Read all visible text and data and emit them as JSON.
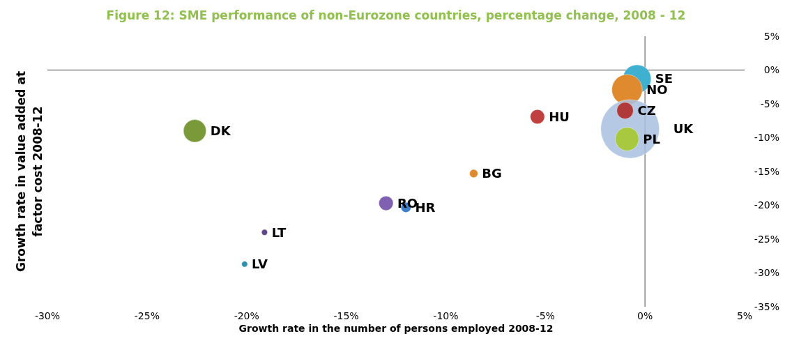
{
  "chart_data": {
    "type": "bubble",
    "title": "Figure 12: SME performance of non-Eurozone countries, percentage change, 2008 - 12",
    "xlabel": "Growth rate in the number of persons employed 2008-12",
    "ylabel": "Growth rate in value added at factor cost 2008-12",
    "xlim": [
      -30,
      5
    ],
    "xticks": [
      {
        "value": -30,
        "label": "-30%"
      },
      {
        "value": -25,
        "label": "-25%"
      },
      {
        "value": -20,
        "label": "-20%"
      },
      {
        "value": -15,
        "label": "-15%"
      },
      {
        "value": -10,
        "label": "-10%"
      },
      {
        "value": -5,
        "label": "-5%"
      },
      {
        "value": 0,
        "label": "0%"
      },
      {
        "value": 5,
        "label": "5%"
      }
    ],
    "ylim": [
      -35,
      5
    ],
    "yticks": [
      {
        "value": -35,
        "label": "-35%"
      },
      {
        "value": -30,
        "label": "-30%"
      },
      {
        "value": -25,
        "label": "-25%"
      },
      {
        "value": -20,
        "label": "-20%"
      },
      {
        "value": -15,
        "label": "-15%"
      },
      {
        "value": -10,
        "label": "-10%"
      },
      {
        "value": -5,
        "label": "-5%"
      },
      {
        "value": 0,
        "label": "0%"
      },
      {
        "value": 5,
        "label": "5%"
      }
    ],
    "series": [
      {
        "name": "SE",
        "color": "#3fb0d0",
        "x": [
          -0.4
        ],
        "values": [
          -1.3
        ],
        "sizes": [
          0.23
        ]
      },
      {
        "name": "NO",
        "color": "#e08a30",
        "x": [
          -0.9
        ],
        "values": [
          -2.9
        ],
        "sizes": [
          0.27
        ]
      },
      {
        "name": "UK",
        "color": "#a8c0e0",
        "x": [
          -0.75
        ],
        "values": [
          -8.7
        ],
        "sizes": [
          1
        ]
      },
      {
        "name": "CZ",
        "color": "#b03a3a",
        "x": [
          -1.0
        ],
        "values": [
          -6.0
        ],
        "sizes": [
          0.08
        ]
      },
      {
        "name": "PL",
        "color": "#a8c840",
        "x": [
          -0.9
        ],
        "values": [
          -10.2
        ],
        "sizes": [
          0.16
        ]
      },
      {
        "name": "HU",
        "color": "#c04040",
        "x": [
          -5.4
        ],
        "values": [
          -6.9
        ],
        "sizes": [
          0.06
        ]
      },
      {
        "name": "DK",
        "color": "#7a9a3a",
        "x": [
          -22.6
        ],
        "values": [
          -9.0
        ],
        "sizes": [
          0.15
        ]
      },
      {
        "name": "BG",
        "color": "#e08a30",
        "x": [
          -8.6
        ],
        "values": [
          -15.3
        ],
        "sizes": [
          0.02
        ]
      },
      {
        "name": "RO",
        "color": "#8060b0",
        "x": [
          -13.0
        ],
        "values": [
          -19.7
        ],
        "sizes": [
          0.06
        ]
      },
      {
        "name": "HR",
        "color": "#4080c8",
        "x": [
          -12.0
        ],
        "values": [
          -20.3
        ],
        "sizes": [
          0.03
        ]
      },
      {
        "name": "LT",
        "color": "#604888",
        "x": [
          -19.1
        ],
        "values": [
          -24.0
        ],
        "sizes": [
          0.01
        ]
      },
      {
        "name": "LV",
        "color": "#3090b0",
        "x": [
          -20.1
        ],
        "values": [
          -28.7
        ],
        "sizes": [
          0.01
        ]
      }
    ]
  }
}
